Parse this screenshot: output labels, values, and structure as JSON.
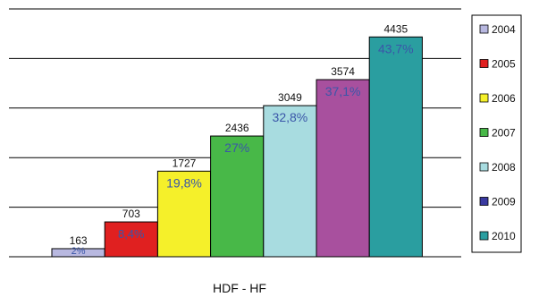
{
  "chart_data": {
    "type": "bar",
    "categories": [
      "2004",
      "2005",
      "2006",
      "2007",
      "2008",
      "2009",
      "2010"
    ],
    "values": [
      163,
      703,
      1727,
      2436,
      3049,
      3574,
      4435
    ],
    "value_labels": [
      "163",
      "703",
      "1727",
      "2436",
      "3049",
      "3574",
      "4435"
    ],
    "percent_labels": [
      "2%",
      "8,4%",
      "19,8%",
      "27%",
      "32,8%",
      "37,1%",
      "43,7%"
    ],
    "colors": [
      "#b8b8e0",
      "#e02020",
      "#f5f02a",
      "#48b848",
      "#a8dce0",
      "#a8509e",
      "#2a9ea0"
    ],
    "xlabel": "HDF - HF",
    "ylim": [
      0,
      5000
    ],
    "grid": true,
    "legend": {
      "position": "right",
      "entries": [
        {
          "label": "2004",
          "color": "#b8b8e0"
        },
        {
          "label": "2005",
          "color": "#e02020"
        },
        {
          "label": "2006",
          "color": "#f5f02a"
        },
        {
          "label": "2007",
          "color": "#48b848"
        },
        {
          "label": "2008",
          "color": "#a8dce0"
        },
        {
          "label": "2009",
          "color": "#3a3aa0"
        },
        {
          "label": "2010",
          "color": "#2a9ea0"
        }
      ]
    }
  }
}
